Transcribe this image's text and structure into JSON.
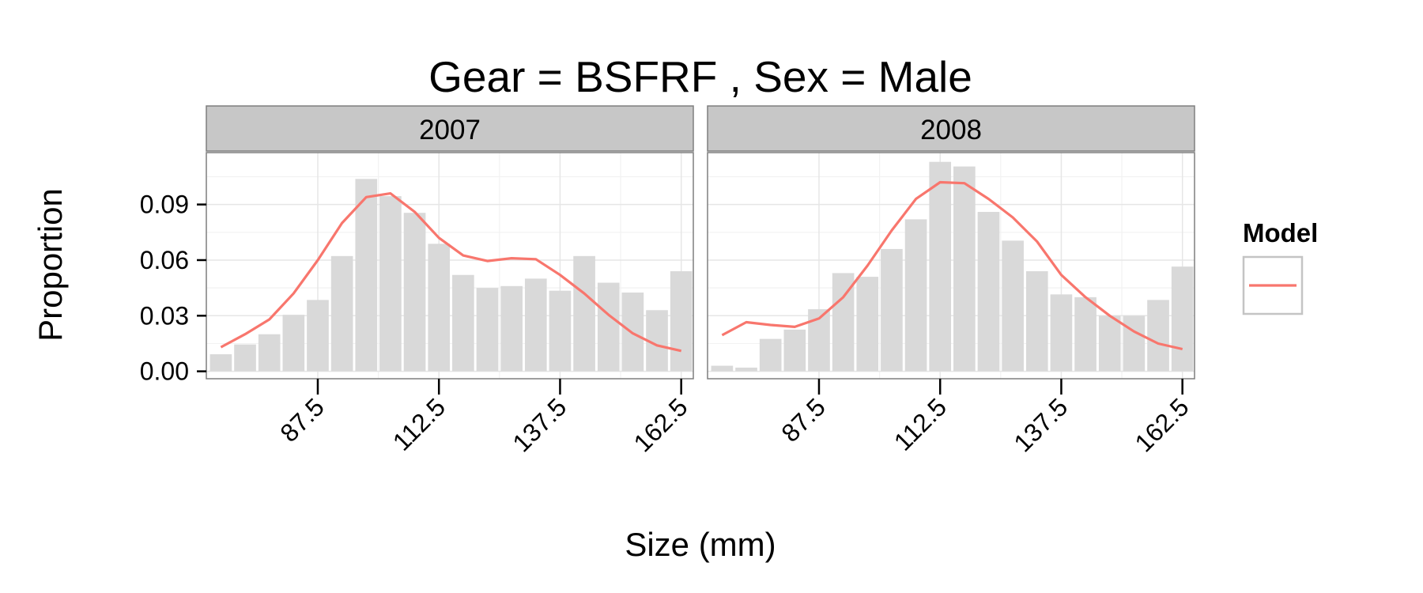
{
  "chart_data": {
    "type": "bar",
    "title": "Gear = BSFRF , Sex = Male",
    "xlabel": "Size (mm)",
    "ylabel": "Proportion",
    "x_ticks": [
      "87.5",
      "112.5",
      "137.5",
      "162.5"
    ],
    "y_ticks": [
      "0.00",
      "0.03",
      "0.06",
      "0.09"
    ],
    "ylim": [
      -0.004,
      0.118
    ],
    "xlim": [
      64.5,
      165
    ],
    "grid": true,
    "legend": {
      "title": "Model",
      "entries": [
        "Model"
      ],
      "placement": "right"
    },
    "colors": {
      "bar": "#d9d9d9",
      "line": "#f8766d",
      "strip": "#c7c7c7",
      "grid": "#e6e6e6"
    },
    "x": [
      67.5,
      72.5,
      77.5,
      82.5,
      87.5,
      92.5,
      97.5,
      102.5,
      107.5,
      112.5,
      117.5,
      122.5,
      127.5,
      132.5,
      137.5,
      142.5,
      147.5,
      152.5,
      157.5,
      162.5
    ],
    "panels": [
      {
        "label": "2007",
        "observed": [
          0.0092,
          0.0145,
          0.02,
          0.0305,
          0.0385,
          0.0622,
          0.1038,
          0.0945,
          0.0855,
          0.0688,
          0.052,
          0.045,
          0.046,
          0.05,
          0.0435,
          0.0622,
          0.0478,
          0.0425,
          0.033,
          0.054
        ],
        "model": [
          0.013,
          0.02,
          0.028,
          0.042,
          0.06,
          0.08,
          0.094,
          0.096,
          0.086,
          0.072,
          0.0625,
          0.0595,
          0.061,
          0.0605,
          0.052,
          0.042,
          0.0305,
          0.0205,
          0.014,
          0.011
        ]
      },
      {
        "label": "2008",
        "observed": [
          0.003,
          0.002,
          0.0175,
          0.0225,
          0.0335,
          0.053,
          0.051,
          0.066,
          0.082,
          0.113,
          0.1105,
          0.086,
          0.0705,
          0.054,
          0.0415,
          0.04,
          0.03,
          0.03,
          0.0385,
          0.0565
        ],
        "model": [
          0.0195,
          0.0265,
          0.025,
          0.024,
          0.0285,
          0.04,
          0.057,
          0.076,
          0.093,
          0.102,
          0.1015,
          0.093,
          0.083,
          0.07,
          0.052,
          0.04,
          0.03,
          0.0215,
          0.015,
          0.012
        ]
      }
    ]
  }
}
